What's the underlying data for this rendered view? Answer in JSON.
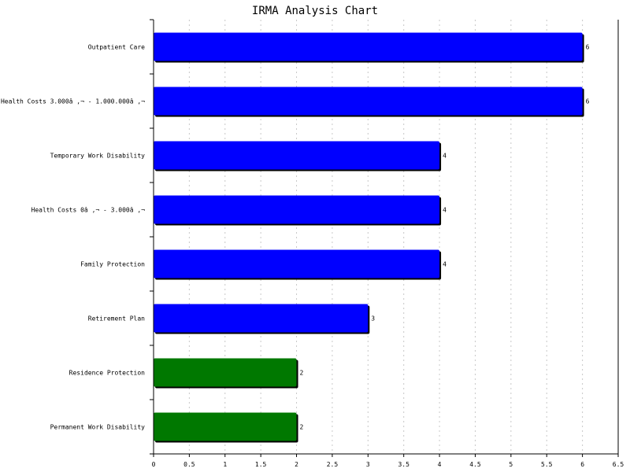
{
  "chart_data": {
    "type": "bar",
    "orientation": "horizontal",
    "title": "IRMA Analysis Chart",
    "xlabel": "",
    "ylabel": "",
    "xlim": [
      0,
      6.5
    ],
    "x_ticks": [
      "0",
      "0.5",
      "1",
      "1.5",
      "2",
      "2.5",
      "3",
      "3.5",
      "4",
      "4.5",
      "5",
      "5.5",
      "6",
      "6.5"
    ],
    "grid": "vertical dashed",
    "legend": "none",
    "categories": [
      "Outpatient Care",
      "Health Costs 3.000â ‚¬ - 1.000.000â ‚¬",
      "Temporary Work Disability",
      "Health Costs 0â ‚¬ - 3.000â ‚¬",
      "Family Protection",
      "Retirement Plan",
      "Residence Protection",
      "Permanent Work Disability"
    ],
    "values": [
      6,
      6,
      4,
      4,
      4,
      3,
      2,
      2
    ],
    "value_labels": [
      "6",
      "6",
      "4",
      "4",
      "4",
      "3",
      "2",
      "2"
    ],
    "bar_colors": [
      "#0000ff",
      "#0000ff",
      "#0000ff",
      "#0000ff",
      "#0000ff",
      "#0000ff",
      "#007800",
      "#007800"
    ]
  }
}
